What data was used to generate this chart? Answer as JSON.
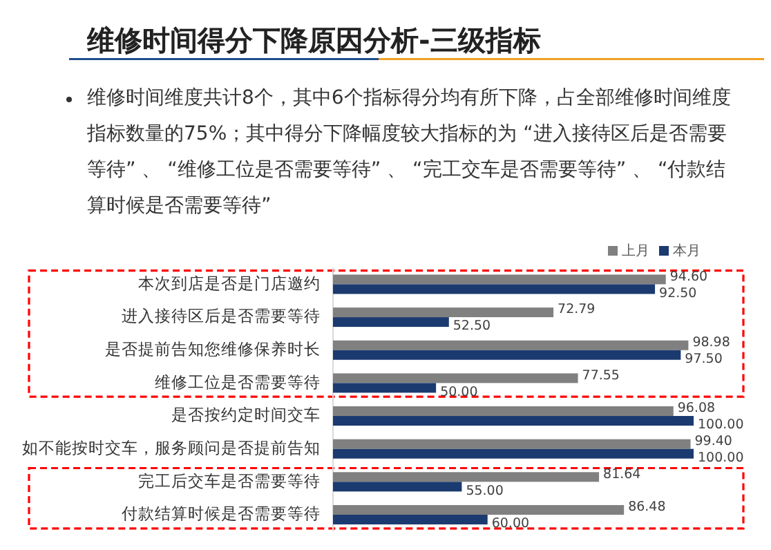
{
  "chart_data": {
    "type": "bar",
    "orientation": "horizontal",
    "title": "维修时间得分下降原因分析-三级指标",
    "subtitle": "维修时间维度共计8个，其中6个指标得分均有所下降，占全部维修时间维度指标数量的75%；其中得分下降幅度较大指标的为 “进入接待区后是否需要等待” 、 “维修工位是否需要等待” 、 “完工交车是否需要等待” 、 “付款结算时候是否需要等待”",
    "categories": [
      "本次到店是否是门店邀约",
      "进入接待区后是否需要等待",
      "是否提前告知您维修保养时长",
      "维修工位是否需要等待",
      "是否按约定时间交车",
      "如不能按时交车，服务顾问是否提前告知",
      "完工后交车是否需要等待",
      "付款结算时候是否需要等待"
    ],
    "xlim": [
      30,
      100
    ],
    "series": [
      {
        "name": "上月",
        "color": "#808080",
        "values": [
          94.6,
          72.79,
          98.98,
          77.55,
          96.08,
          99.4,
          81.64,
          86.48
        ],
        "value_labels": [
          "94.60",
          "72.79",
          "98.98",
          "77.55",
          "96.08",
          "99.40",
          "81.64",
          "86.48"
        ]
      },
      {
        "name": "本月",
        "color": "#1b3a6f",
        "values": [
          92.5,
          52.5,
          97.5,
          50,
          100,
          100,
          55,
          60
        ],
        "value_labels": [
          "92.50",
          "52.50",
          "97.50",
          "50.00",
          "100.00",
          "100.00",
          "55.00",
          "60.00"
        ]
      }
    ],
    "legend": "top right"
  }
}
